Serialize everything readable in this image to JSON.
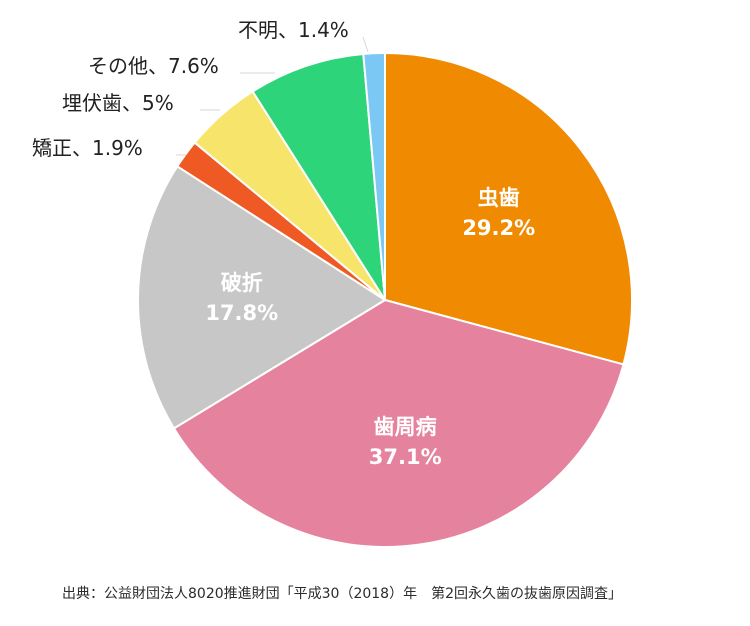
{
  "chart_data": {
    "type": "pie",
    "start_angle_deg": 0,
    "direction": "clockwise",
    "slices": [
      {
        "label": "虫歯",
        "value": 29.2,
        "value_text": "29.2%",
        "color": "#f08a00",
        "label_style": "inside",
        "label_color": "#ffffff"
      },
      {
        "label": "歯周病",
        "value": 37.1,
        "value_text": "37.1%",
        "color": "#e5829d",
        "label_style": "inside",
        "label_color": "#ffffff"
      },
      {
        "label": "破折",
        "value": 17.8,
        "value_text": "17.8%",
        "color": "#c7c7c7",
        "label_style": "inside",
        "label_color": "#ffffff"
      },
      {
        "label": "矯正",
        "value": 1.9,
        "value_text": "矯正、1.9%",
        "color": "#ef5a24",
        "label_style": "outside",
        "label_color": "#222222"
      },
      {
        "label": "埋伏歯",
        "value": 5,
        "value_text": "埋伏歯、5%",
        "color": "#f7e46a",
        "label_style": "outside",
        "label_color": "#222222"
      },
      {
        "label": "その他",
        "value": 7.6,
        "value_text": "その他、7.6%",
        "color": "#2ed47a",
        "label_style": "outside",
        "label_color": "#222222"
      },
      {
        "label": "不明",
        "value": 1.4,
        "value_text": "不明、1.4%",
        "color": "#7cc8f5",
        "label_style": "outside",
        "label_color": "#222222"
      }
    ],
    "source": "出典：公益財団法人8020推進財団「平成30（2018）年　第2回永久歯の抜歯原因調査」"
  }
}
